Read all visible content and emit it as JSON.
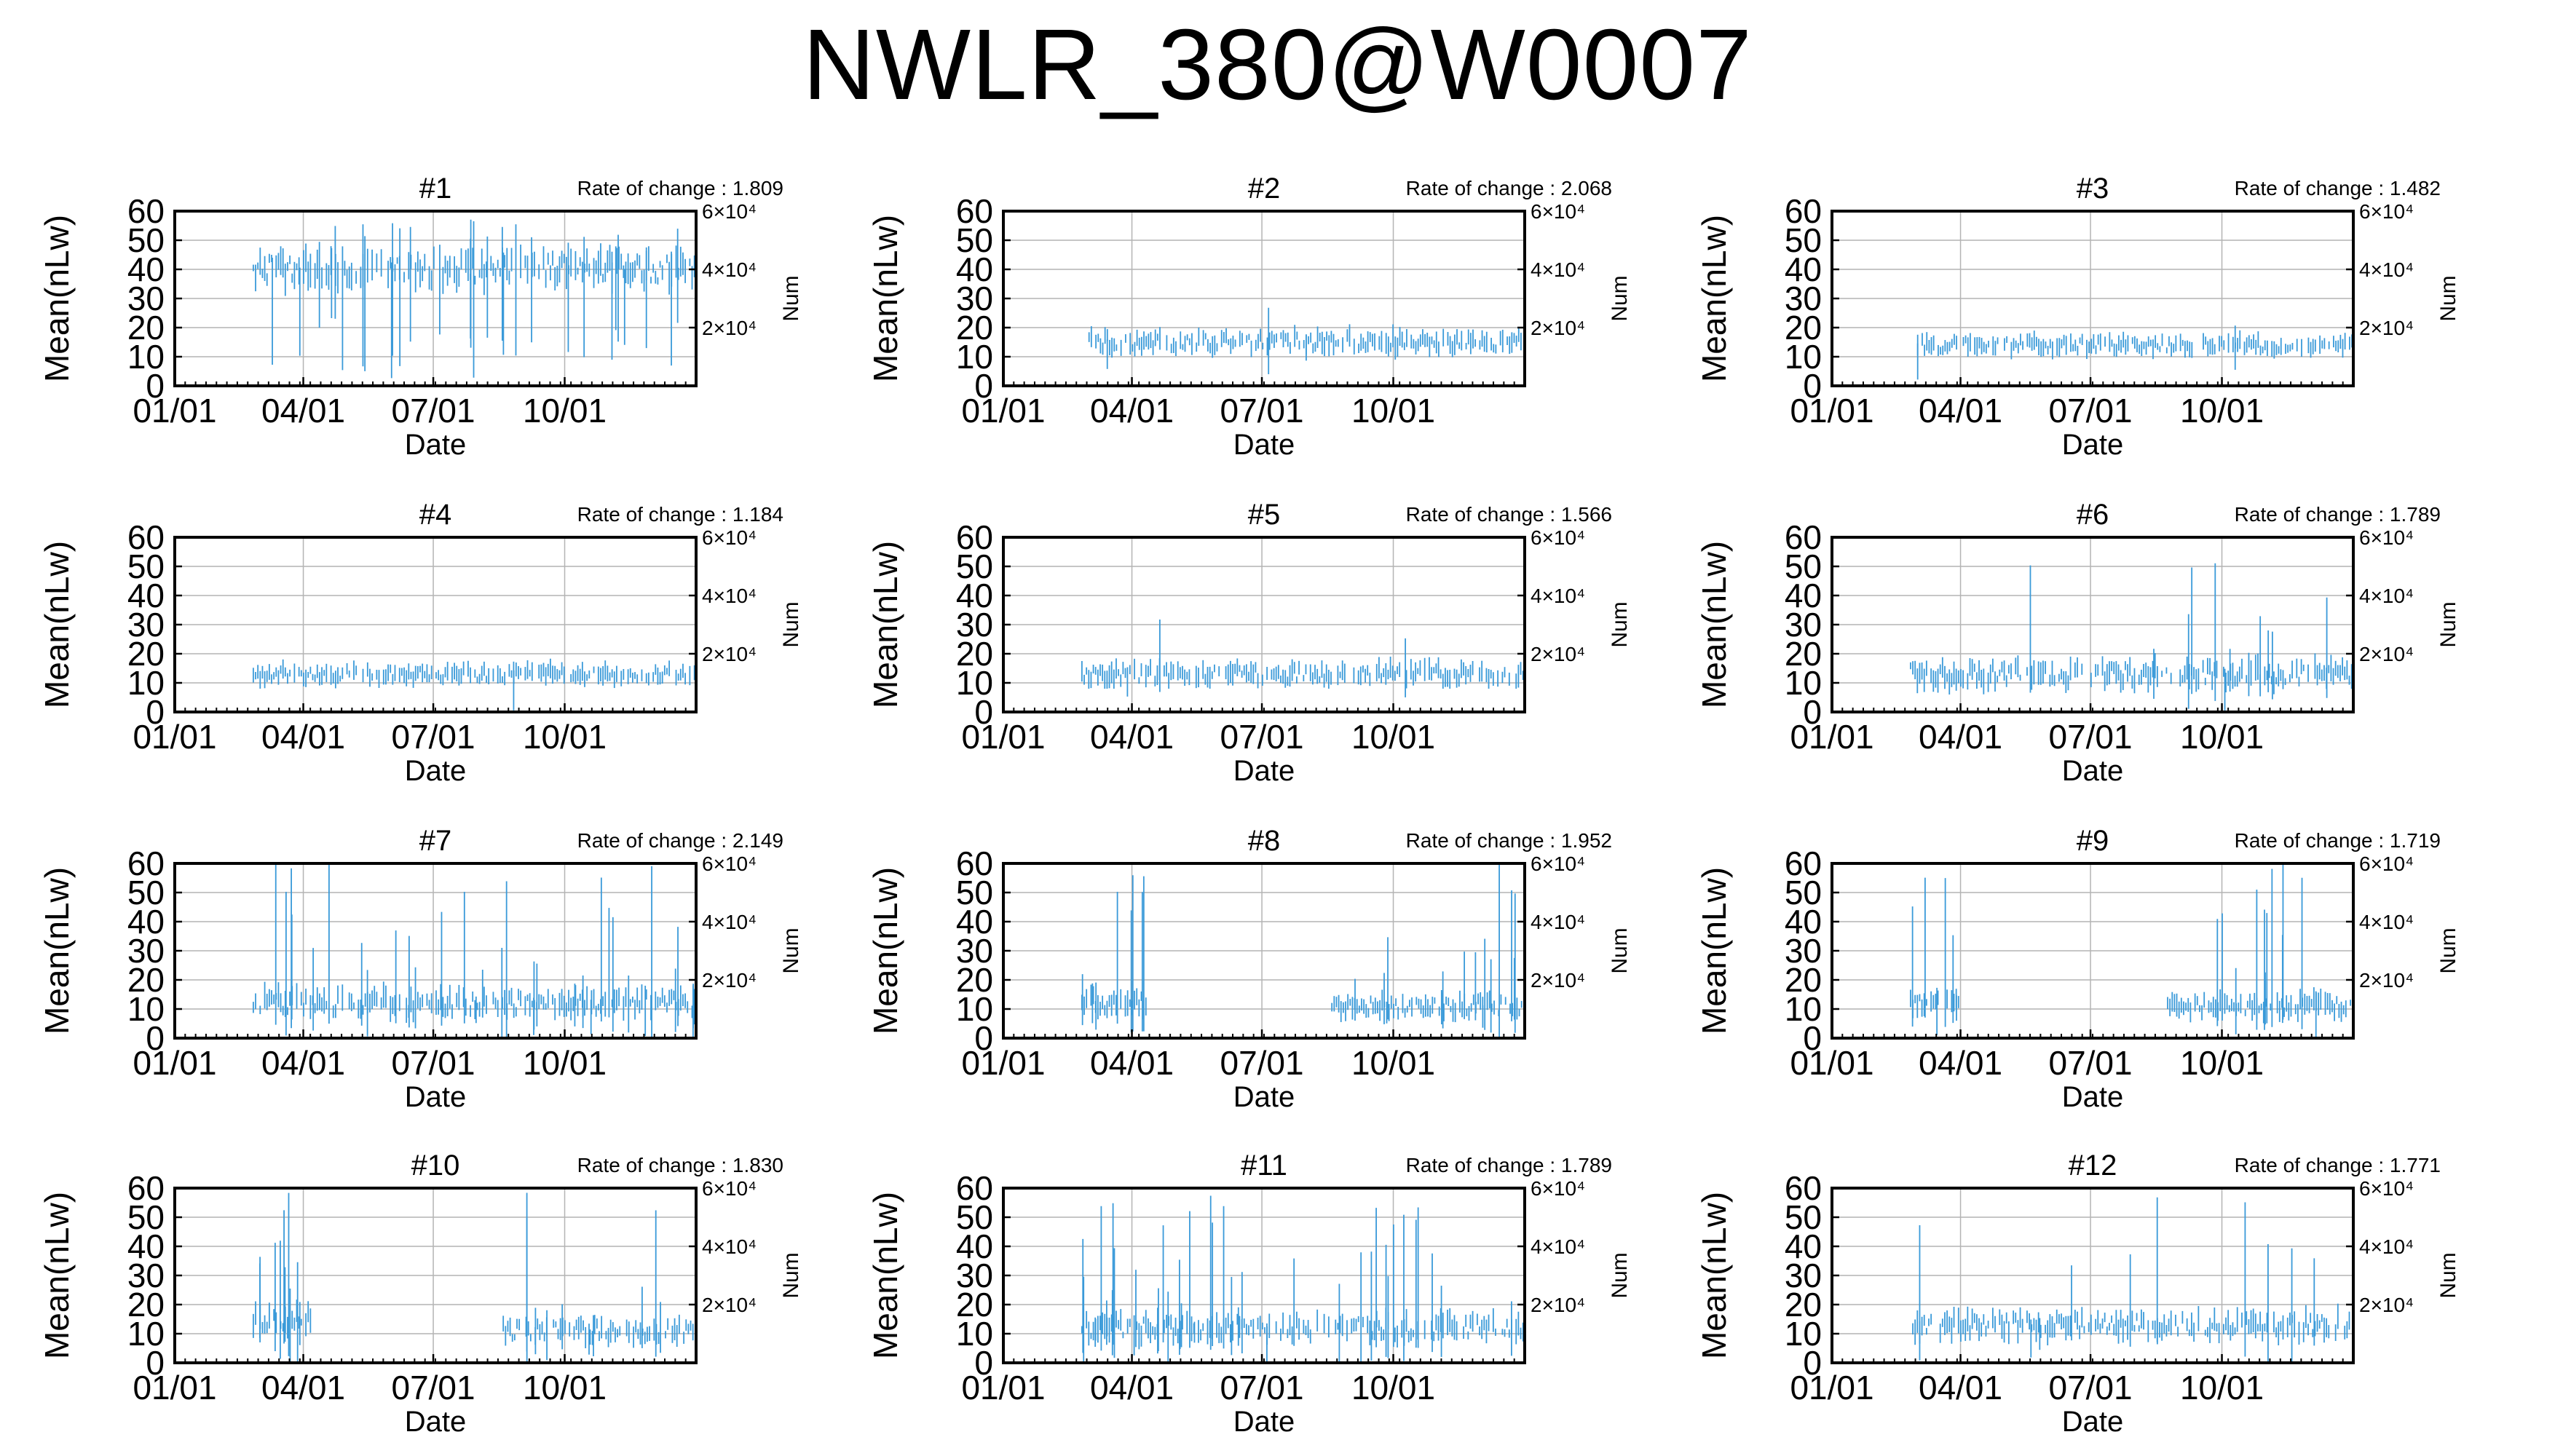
{
  "title": "NWLR_380@W0007",
  "chart_data": [
    {
      "type": "line",
      "title": "#1",
      "rate_label": "Rate of change : 1.809",
      "xlabel": "Date",
      "ylabel": "Mean(nLw)",
      "y2label": "Num",
      "xticks": [
        "01/01",
        "04/01",
        "07/01",
        "10/01"
      ],
      "yticks": [
        "0",
        "10",
        "20",
        "30",
        "40",
        "50",
        "60"
      ],
      "y2ticks": [
        "2×10⁴",
        "4×10⁴",
        "6×10⁴"
      ],
      "ylim": [
        0,
        60
      ],
      "grid": true,
      "series": [
        {
          "start_day": 55,
          "end_day": 365,
          "base": 40,
          "spread": 8,
          "lo": 5,
          "spikes": 30,
          "spike_max": 60
        }
      ]
    },
    {
      "type": "line",
      "title": "#2",
      "rate_label": "Rate of change : 2.068",
      "xlabel": "Date",
      "ylabel": "Mean(nLw)",
      "y2label": "Num",
      "xticks": [
        "01/01",
        "04/01",
        "07/01",
        "10/01"
      ],
      "yticks": [
        "0",
        "10",
        "20",
        "30",
        "40",
        "50",
        "60"
      ],
      "y2ticks": [
        "2×10⁴",
        "4×10⁴",
        "6×10⁴"
      ],
      "ylim": [
        0,
        60
      ],
      "grid": true,
      "series": [
        {
          "start_day": 60,
          "end_day": 365,
          "base": 15,
          "spread": 5,
          "lo": 9,
          "spikes": 3,
          "spike_max": 28
        }
      ]
    },
    {
      "type": "line",
      "title": "#3",
      "rate_label": "Rate of change : 1.482",
      "xlabel": "Date",
      "ylabel": "Mean(nLw)",
      "y2label": "Num",
      "xticks": [
        "01/01",
        "04/01",
        "07/01",
        "10/01"
      ],
      "yticks": [
        "0",
        "10",
        "20",
        "30",
        "40",
        "50",
        "60"
      ],
      "y2ticks": [
        "2×10⁴",
        "4×10⁴",
        "6×10⁴"
      ],
      "ylim": [
        0,
        60
      ],
      "grid": true,
      "series": [
        {
          "start_day": 60,
          "end_day": 365,
          "base": 14,
          "spread": 4,
          "lo": 8,
          "spikes": 2,
          "spike_max": 30
        }
      ]
    },
    {
      "type": "line",
      "title": "#4",
      "rate_label": "Rate of change : 1.184",
      "xlabel": "Date",
      "ylabel": "Mean(nLw)",
      "y2label": "Num",
      "xticks": [
        "01/01",
        "04/01",
        "07/01",
        "10/01"
      ],
      "yticks": [
        "0",
        "10",
        "20",
        "30",
        "40",
        "50",
        "60"
      ],
      "y2ticks": [
        "2×10⁴",
        "4×10⁴",
        "6×10⁴"
      ],
      "ylim": [
        0,
        60
      ],
      "grid": true,
      "series": [
        {
          "start_day": 55,
          "end_day": 365,
          "base": 13,
          "spread": 4,
          "lo": 8,
          "spikes": 1,
          "spike_max": 21
        }
      ]
    },
    {
      "type": "line",
      "title": "#5",
      "rate_label": "Rate of change : 1.566",
      "xlabel": "Date",
      "ylabel": "Mean(nLw)",
      "y2label": "Num",
      "xticks": [
        "01/01",
        "04/01",
        "07/01",
        "10/01"
      ],
      "yticks": [
        "0",
        "10",
        "20",
        "30",
        "40",
        "50",
        "60"
      ],
      "y2ticks": [
        "2×10⁴",
        "4×10⁴",
        "6×10⁴"
      ],
      "ylim": [
        0,
        60
      ],
      "grid": true,
      "series": [
        {
          "start_day": 55,
          "end_day": 365,
          "base": 13,
          "spread": 5,
          "lo": 8,
          "spikes": 3,
          "spike_max": 35
        }
      ]
    },
    {
      "type": "line",
      "title": "#6",
      "rate_label": "Rate of change : 1.789",
      "xlabel": "Date",
      "ylabel": "Mean(nLw)",
      "y2label": "Num",
      "xticks": [
        "01/01",
        "04/01",
        "07/01",
        "10/01"
      ],
      "yticks": [
        "0",
        "10",
        "20",
        "30",
        "40",
        "50",
        "60"
      ],
      "y2ticks": [
        "2×10⁴",
        "4×10⁴",
        "6×10⁴"
      ],
      "ylim": [
        0,
        60
      ],
      "grid": true,
      "series": [
        {
          "start_day": 55,
          "end_day": 365,
          "base": 13,
          "spread": 6,
          "lo": 6,
          "spikes": 12,
          "spike_max": 57
        }
      ]
    },
    {
      "type": "line",
      "title": "#7",
      "rate_label": "Rate of change : 2.149",
      "xlabel": "Date",
      "ylabel": "Mean(nLw)",
      "y2label": "Num",
      "xticks": [
        "01/01",
        "04/01",
        "07/01",
        "10/01"
      ],
      "yticks": [
        "0",
        "10",
        "20",
        "30",
        "40",
        "50",
        "60"
      ],
      "y2ticks": [
        "2×10⁴",
        "4×10⁴",
        "6×10⁴"
      ],
      "ylim": [
        0,
        60
      ],
      "grid": true,
      "series": [
        {
          "start_day": 55,
          "end_day": 365,
          "base": 12,
          "spread": 6,
          "lo": 5,
          "spikes": 35,
          "spike_max": 60
        }
      ]
    },
    {
      "type": "line",
      "title": "#8",
      "rate_label": "Rate of change : 1.952",
      "xlabel": "Date",
      "ylabel": "Mean(nLw)",
      "y2label": "Num",
      "xticks": [
        "01/01",
        "04/01",
        "07/01",
        "10/01"
      ],
      "yticks": [
        "0",
        "10",
        "20",
        "30",
        "40",
        "50",
        "60"
      ],
      "y2ticks": [
        "2×10⁴",
        "4×10⁴",
        "6×10⁴"
      ],
      "ylim": [
        0,
        60
      ],
      "grid": true,
      "series": [
        {
          "start_day": 55,
          "end_day": 100,
          "base": 12,
          "spread": 6,
          "lo": 3,
          "spikes": 8,
          "spike_max": 60
        },
        {
          "start_day": 230,
          "end_day": 365,
          "base": 11,
          "spread": 5,
          "lo": 4,
          "spikes": 14,
          "spike_max": 60
        }
      ]
    },
    {
      "type": "line",
      "title": "#9",
      "rate_label": "Rate of change : 1.719",
      "xlabel": "Date",
      "ylabel": "Mean(nLw)",
      "y2label": "Num",
      "xticks": [
        "01/01",
        "04/01",
        "07/01",
        "10/01"
      ],
      "yticks": [
        "0",
        "10",
        "20",
        "30",
        "40",
        "50",
        "60"
      ],
      "y2ticks": [
        "2×10⁴",
        "4×10⁴",
        "6×10⁴"
      ],
      "ylim": [
        0,
        60
      ],
      "grid": true,
      "series": [
        {
          "start_day": 55,
          "end_day": 90,
          "base": 12,
          "spread": 5,
          "lo": 4,
          "spikes": 6,
          "spike_max": 60
        },
        {
          "start_day": 235,
          "end_day": 365,
          "base": 11,
          "spread": 5,
          "lo": 4,
          "spikes": 12,
          "spike_max": 60
        }
      ]
    },
    {
      "type": "line",
      "title": "#10",
      "rate_label": "Rate of change : 1.830",
      "xlabel": "Date",
      "ylabel": "Mean(nLw)",
      "y2label": "Num",
      "xticks": [
        "01/01",
        "04/01",
        "07/01",
        "10/01"
      ],
      "yticks": [
        "0",
        "10",
        "20",
        "30",
        "40",
        "50",
        "60"
      ],
      "y2ticks": [
        "2×10⁴",
        "4×10⁴",
        "6×10⁴"
      ],
      "ylim": [
        0,
        60
      ],
      "grid": true,
      "series": [
        {
          "start_day": 55,
          "end_day": 95,
          "base": 15,
          "spread": 6,
          "lo": 4,
          "spikes": 10,
          "spike_max": 60
        },
        {
          "start_day": 230,
          "end_day": 365,
          "base": 11,
          "spread": 5,
          "lo": 4,
          "spikes": 10,
          "spike_max": 60
        }
      ]
    },
    {
      "type": "line",
      "title": "#11",
      "rate_label": "Rate of change : 1.789",
      "xlabel": "Date",
      "ylabel": "Mean(nLw)",
      "y2label": "Num",
      "xticks": [
        "01/01",
        "04/01",
        "07/01",
        "10/01"
      ],
      "yticks": [
        "0",
        "10",
        "20",
        "30",
        "40",
        "50",
        "60"
      ],
      "y2ticks": [
        "2×10⁴",
        "4×10⁴",
        "6×10⁴"
      ],
      "ylim": [
        0,
        60
      ],
      "grid": true,
      "series": [
        {
          "start_day": 55,
          "end_day": 365,
          "base": 12,
          "spread": 6,
          "lo": 4,
          "spikes": 40,
          "spike_max": 60
        }
      ]
    },
    {
      "type": "line",
      "title": "#12",
      "rate_label": "Rate of change : 1.771",
      "xlabel": "Date",
      "ylabel": "Mean(nLw)",
      "y2label": "Num",
      "xticks": [
        "01/01",
        "04/01",
        "07/01",
        "10/01"
      ],
      "yticks": [
        "0",
        "10",
        "20",
        "30",
        "40",
        "50",
        "60"
      ],
      "y2ticks": [
        "2×10⁴",
        "4×10⁴",
        "6×10⁴"
      ],
      "ylim": [
        0,
        60
      ],
      "grid": true,
      "series": [
        {
          "start_day": 55,
          "end_day": 365,
          "base": 13,
          "spread": 6,
          "lo": 6,
          "spikes": 10,
          "spike_max": 57
        }
      ]
    }
  ],
  "colors": {
    "series": "#3a9ad9",
    "grid": "#b4b4b4",
    "axis": "#000000"
  }
}
